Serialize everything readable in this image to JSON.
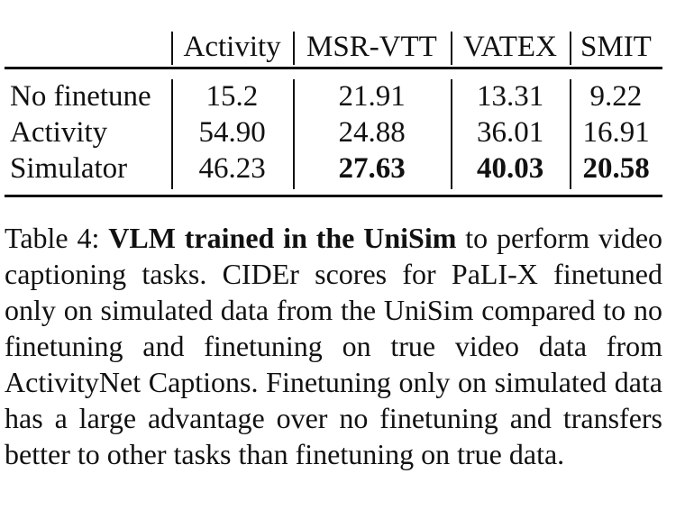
{
  "table": {
    "header": [
      "",
      "Activity",
      "MSR-VTT",
      "VATEX",
      "SMIT"
    ],
    "rows": [
      [
        "No finetune",
        "15.2",
        "21.91",
        "13.31",
        "9.22"
      ],
      [
        "Activity",
        "54.90",
        "24.88",
        "36.01",
        "16.91"
      ],
      [
        "Simulator",
        "46.23",
        "27.63",
        "40.03",
        "20.58"
      ]
    ],
    "bold_cells": [
      [
        2,
        2
      ],
      [
        2,
        3
      ],
      [
        2,
        4
      ]
    ]
  },
  "caption": {
    "label": "Table 4:",
    "bold": "VLM trained in the UniSim",
    "text": "to perform video captioning tasks. CIDEr scores for PaLI-X finetuned only on simulated data from the UniSim compared to no finetuning and finetuning on true video data from ActivityNet Captions. Finetuning only on simulated data has a large advantage over no finetuning and transfers better to other tasks than finetuning on true data."
  }
}
